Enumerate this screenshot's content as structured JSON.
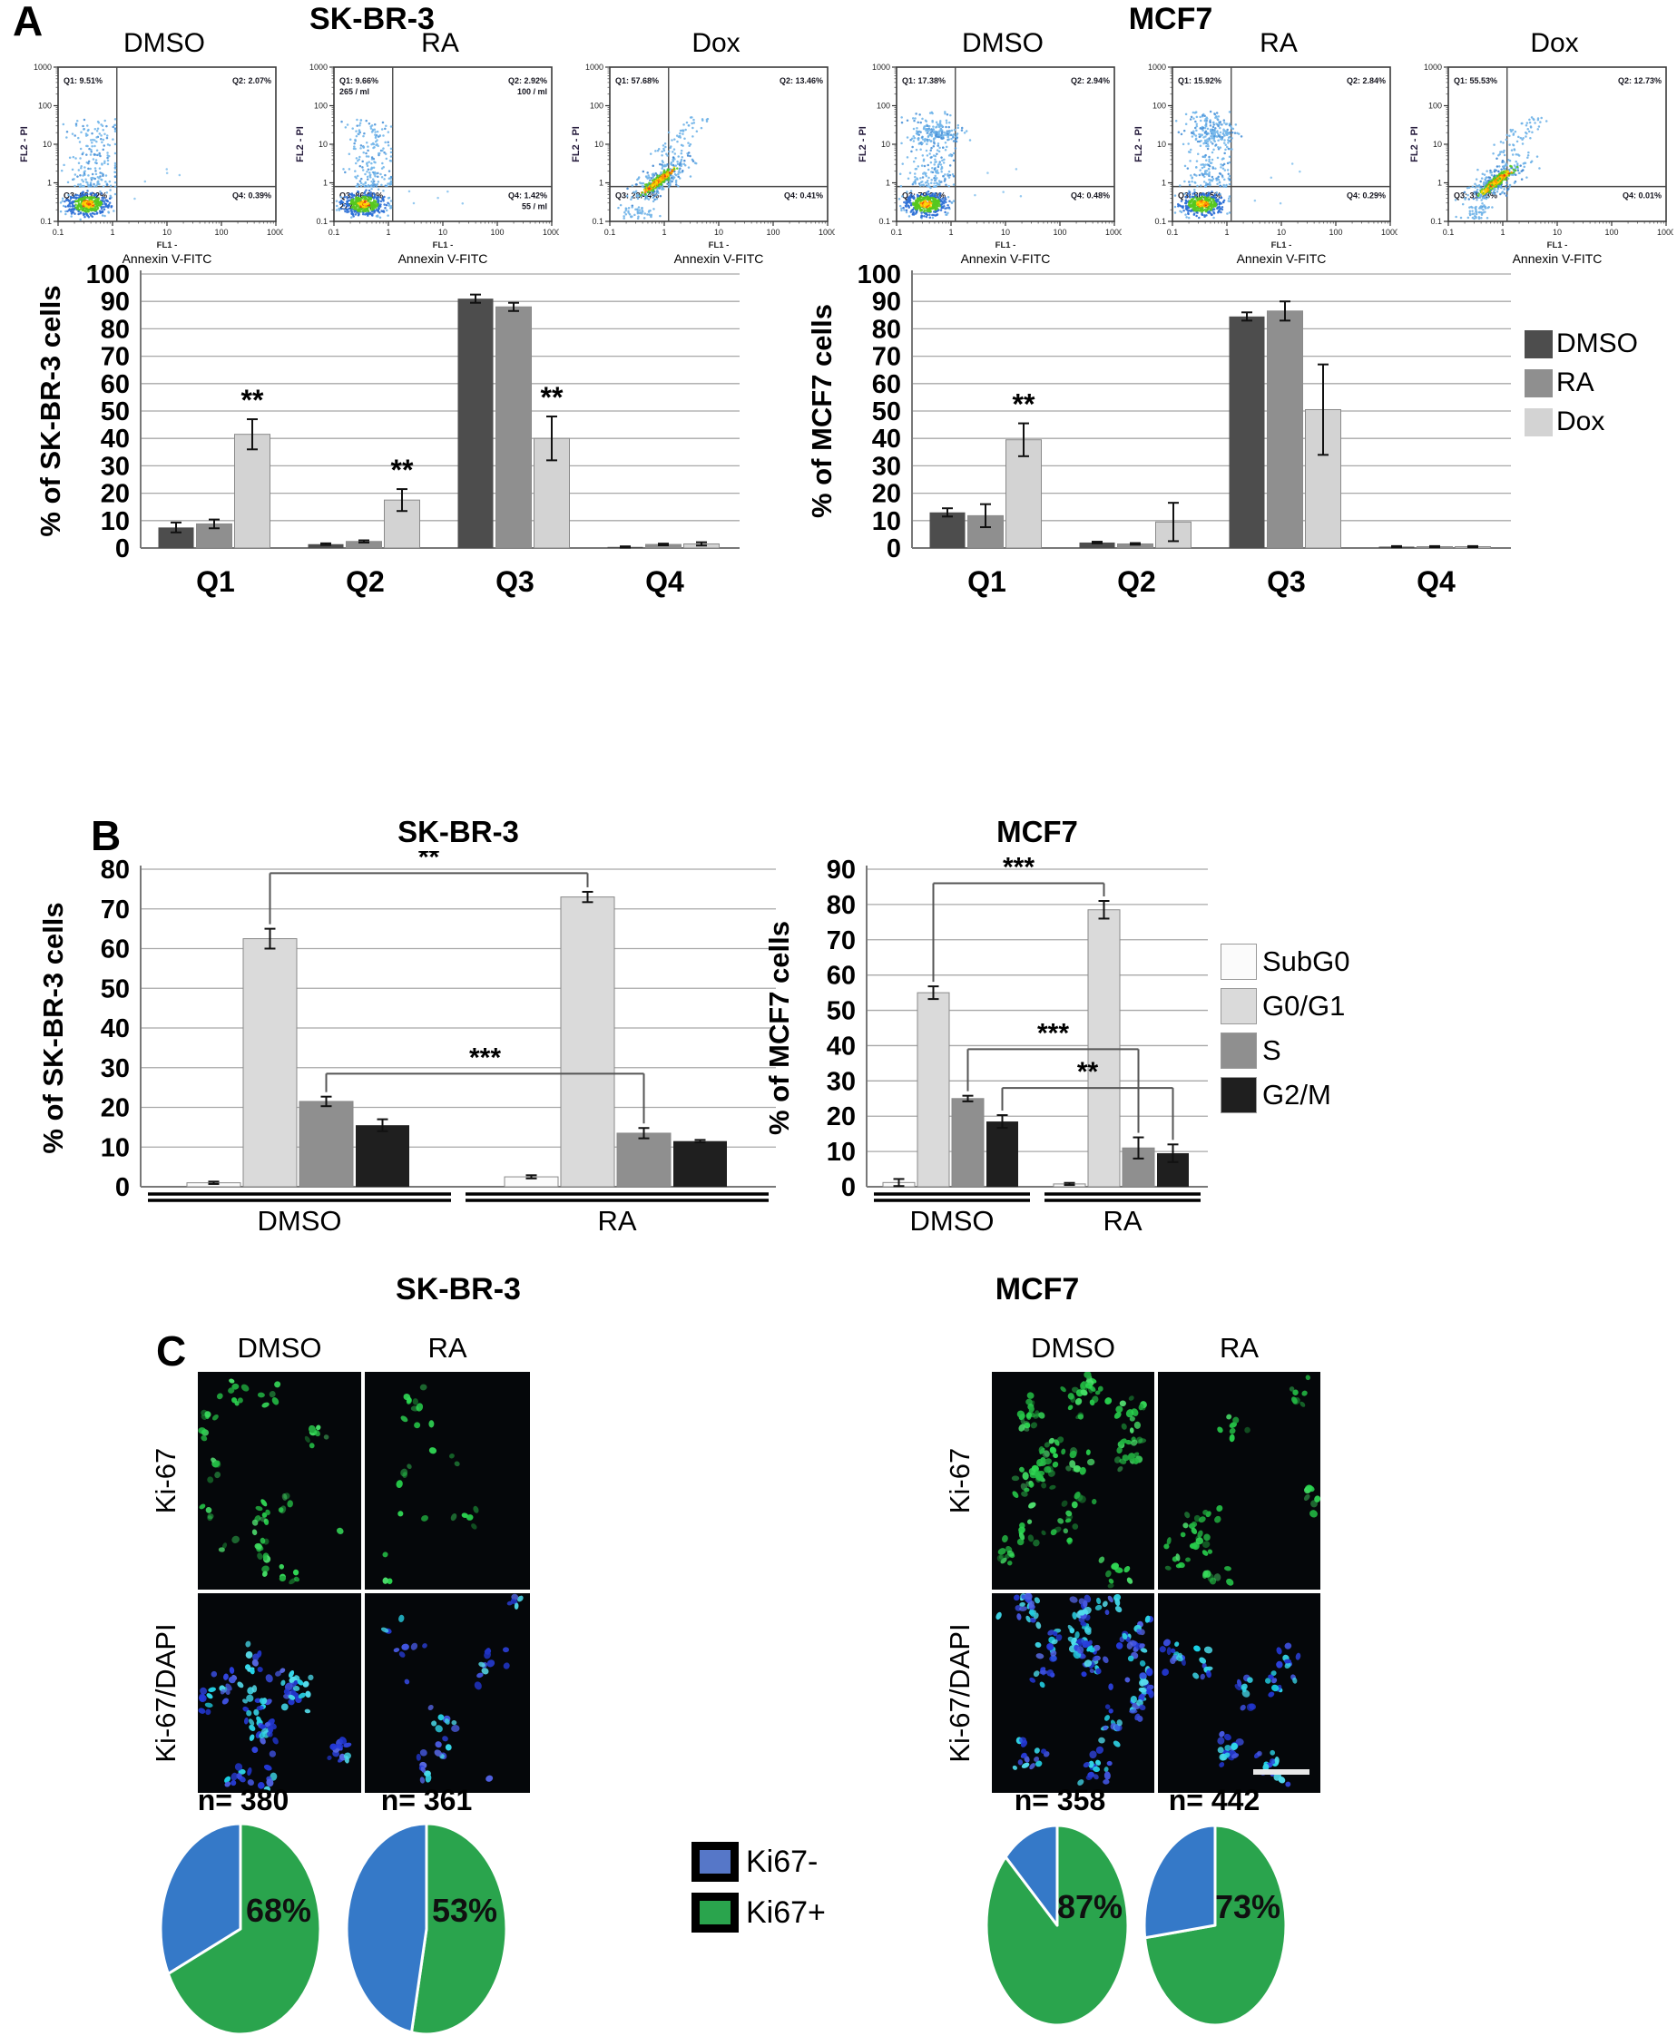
{
  "figure": {
    "panel_a": "A",
    "panel_b": "B",
    "panel_c": "C",
    "cell_line_left": "SK-BR-3",
    "cell_line_right": "MCF7"
  },
  "flow": {
    "axis": {
      "ticks": [
        "0.1",
        "1",
        "10",
        "100",
        "1000"
      ],
      "y_label": "FL2 - PI",
      "x_label_line1": "FL1 -",
      "x_label_line2": "Annexin V-FITC"
    },
    "plots": [
      {
        "cell_line": "SK-BR-3",
        "treatment": "DMSO",
        "pattern": "vertical",
        "seed": 11,
        "quadrants": {
          "q1": "Q1: 9.51%",
          "q2": "Q2: 2.07%",
          "q3": "Q3: 88.02%",
          "q4": "Q4: 0.39%"
        }
      },
      {
        "cell_line": "SK-BR-3",
        "treatment": "RA",
        "pattern": "vertical",
        "seed": 23,
        "quadrants": {
          "q1": "Q1: 9.66%",
          "q2": "Q2: 2.92%",
          "q3": "Q3: 86.00%",
          "q4": "Q4: 1.42%"
        },
        "sub": {
          "q1": "265 / ml",
          "q2": "100 / ml",
          "q3": "2770 / ml",
          "q4": "55 / ml"
        }
      },
      {
        "cell_line": "SK-BR-3",
        "treatment": "Dox",
        "pattern": "diagonal",
        "seed": 37,
        "quadrants": {
          "q1": "Q1: 57.68%",
          "q2": "Q2: 13.46%",
          "q3": "Q3: 28.44%",
          "q4": "Q4: 0.41%"
        }
      },
      {
        "cell_line": "MCF7",
        "treatment": "DMSO",
        "pattern": "vertical",
        "tall": true,
        "seed": 47,
        "quadrants": {
          "q1": "Q1: 17.38%",
          "q2": "Q2: 2.94%",
          "q3": "Q3: 79.20%",
          "q4": "Q4: 0.48%"
        }
      },
      {
        "cell_line": "MCF7",
        "treatment": "RA",
        "pattern": "vertical",
        "tall": true,
        "seed": 59,
        "quadrants": {
          "q1": "Q1: 15.92%",
          "q2": "Q2: 2.84%",
          "q3": "Q3: 80.95%",
          "q4": "Q4: 0.29%"
        }
      },
      {
        "cell_line": "MCF7",
        "treatment": "Dox",
        "pattern": "diagonal",
        "seed": 71,
        "quadrants": {
          "q1": "Q1: 55.53%",
          "q2": "Q2: 12.73%",
          "q3": "Q3: 31.73%",
          "q4": "Q4: 0.01%"
        }
      }
    ]
  },
  "chart_data": [
    {
      "id": "apoptosis_skbr3",
      "type": "bar",
      "title": "SK-BR-3",
      "ylabel": "% of SK-BR-3 cells",
      "ylim": [
        0,
        100
      ],
      "ytick_step": 10,
      "categories": [
        "Q1",
        "Q2",
        "Q3",
        "Q4"
      ],
      "series": [
        {
          "name": "DMSO",
          "color": "#4d4d4d",
          "values": [
            7.5,
            1.4,
            91,
            0.4
          ],
          "errors": [
            1.8,
            0.3,
            1.5,
            0.2
          ]
        },
        {
          "name": "RA",
          "color": "#8f8f8f",
          "values": [
            8.8,
            2.4,
            88,
            1.3
          ],
          "errors": [
            1.6,
            0.4,
            1.5,
            0.3
          ]
        },
        {
          "name": "Dox",
          "color": "#d3d3d3",
          "values": [
            41.5,
            17.5,
            40,
            1.5
          ],
          "errors": [
            5.5,
            4,
            8,
            0.6
          ]
        }
      ],
      "sig": [
        {
          "cat": 0,
          "series": 2,
          "label": "**"
        },
        {
          "cat": 1,
          "series": 2,
          "label": "**"
        },
        {
          "cat": 2,
          "series": 2,
          "label": "**"
        }
      ]
    },
    {
      "id": "apoptosis_mcf7",
      "type": "bar",
      "title": "MCF7",
      "ylabel": "% of MCF7 cells",
      "ylim": [
        0,
        100
      ],
      "ytick_step": 10,
      "categories": [
        "Q1",
        "Q2",
        "Q3",
        "Q4"
      ],
      "series": [
        {
          "name": "DMSO",
          "color": "#4d4d4d",
          "values": [
            13,
            2,
            84.5,
            0.5
          ],
          "errors": [
            1.5,
            0.3,
            1.5,
            0.2
          ]
        },
        {
          "name": "RA",
          "color": "#8f8f8f",
          "values": [
            11.8,
            1.5,
            86.5,
            0.5
          ],
          "errors": [
            4.2,
            0.3,
            3.5,
            0.2
          ]
        },
        {
          "name": "Dox",
          "color": "#d3d3d3",
          "values": [
            39.5,
            9.5,
            50.5,
            0.5
          ],
          "errors": [
            6,
            7,
            16.5,
            0.2
          ]
        }
      ],
      "sig": [
        {
          "cat": 0,
          "series": 2,
          "label": "**"
        }
      ]
    },
    {
      "id": "cellcycle_skbr3",
      "type": "bar",
      "title": "SK-BR-3",
      "xlabel": "SK-BR-3",
      "ylabel": "% of SK-BR-3 cells",
      "ylim": [
        0,
        80
      ],
      "ytick_step": 10,
      "categories": [
        "DMSO",
        "RA"
      ],
      "series": [
        {
          "name": "SubG0",
          "color": "#fbfbfb",
          "values": [
            1.0,
            2.5
          ],
          "errors": [
            0.3,
            0.4
          ]
        },
        {
          "name": "G0/G1",
          "color": "#dadada",
          "values": [
            62.5,
            73
          ],
          "errors": [
            2.5,
            1.3
          ]
        },
        {
          "name": "S",
          "color": "#8f8f8f",
          "values": [
            21.5,
            13.5
          ],
          "errors": [
            1.2,
            1.3
          ]
        },
        {
          "name": "G2/M",
          "color": "#1f1f1f",
          "values": [
            15.5,
            11.5
          ],
          "errors": [
            1.5,
            0.3
          ]
        }
      ],
      "brackets": [
        {
          "c1": 0,
          "s1": 1,
          "c2": 1,
          "s2": 1,
          "y": 79,
          "label": "**"
        },
        {
          "c1": 0,
          "s1": 2,
          "c2": 1,
          "s2": 2,
          "y": 28.5,
          "label": "***"
        }
      ]
    },
    {
      "id": "cellcycle_mcf7",
      "type": "bar",
      "title": "MCF7",
      "xlabel": "MCF7",
      "ylabel": "% of MCF7 cells",
      "ylim": [
        0,
        90
      ],
      "ytick_step": 10,
      "categories": [
        "DMSO",
        "RA"
      ],
      "series": [
        {
          "name": "SubG0",
          "color": "#fbfbfb",
          "values": [
            1.2,
            0.8
          ],
          "errors": [
            1.0,
            0.3
          ]
        },
        {
          "name": "G0/G1",
          "color": "#dadada",
          "values": [
            55,
            78.5
          ],
          "errors": [
            1.8,
            2.5
          ]
        },
        {
          "name": "S",
          "color": "#8f8f8f",
          "values": [
            25,
            11
          ],
          "errors": [
            0.8,
            3
          ]
        },
        {
          "name": "G2/M",
          "color": "#1f1f1f",
          "values": [
            18.5,
            9.5
          ],
          "errors": [
            1.8,
            2.5
          ]
        }
      ],
      "brackets": [
        {
          "c1": 0,
          "s1": 1,
          "c2": 1,
          "s2": 1,
          "y": 86,
          "label": "***"
        },
        {
          "c1": 0,
          "s1": 2,
          "c2": 1,
          "s2": 2,
          "y": 39,
          "label": "***"
        },
        {
          "c1": 0,
          "s1": 3,
          "c2": 1,
          "s2": 3,
          "y": 28,
          "label": "**"
        }
      ]
    },
    {
      "id": "ki67_skbr3_dmso",
      "type": "pie",
      "n_label": "n= 380",
      "label": "68%",
      "pos_pct": 68,
      "slices": [
        {
          "name": "Ki67+",
          "value": 68
        },
        {
          "name": "Ki67-",
          "value": 32
        }
      ]
    },
    {
      "id": "ki67_skbr3_ra",
      "type": "pie",
      "n_label": "n= 361",
      "label": "53%",
      "pos_pct": 53,
      "slices": [
        {
          "name": "Ki67+",
          "value": 53
        },
        {
          "name": "Ki67-",
          "value": 47
        }
      ]
    },
    {
      "id": "ki67_mcf7_dmso",
      "type": "pie",
      "n_label": "n= 358",
      "label": "87%",
      "pos_pct": 87,
      "slices": [
        {
          "name": "Ki67+",
          "value": 87
        },
        {
          "name": "Ki67-",
          "value": 13
        }
      ]
    },
    {
      "id": "ki67_mcf7_ra",
      "type": "pie",
      "n_label": "n= 442",
      "label": "73%",
      "pos_pct": 73,
      "slices": [
        {
          "name": "Ki67+",
          "value": 73
        },
        {
          "name": "Ki67-",
          "value": 27
        }
      ]
    }
  ],
  "panel_c": {
    "col_headers": [
      "DMSO",
      "RA"
    ],
    "row_headers": [
      "Ki-67",
      "Ki-67/DAPI"
    ],
    "legend": [
      {
        "name": "Ki67-",
        "color": "#5677c8"
      },
      {
        "name": "Ki67+",
        "color": "#2aa44d"
      }
    ],
    "pie_colors": {
      "pos": "#2aa44d",
      "neg": "#3579c8"
    }
  }
}
